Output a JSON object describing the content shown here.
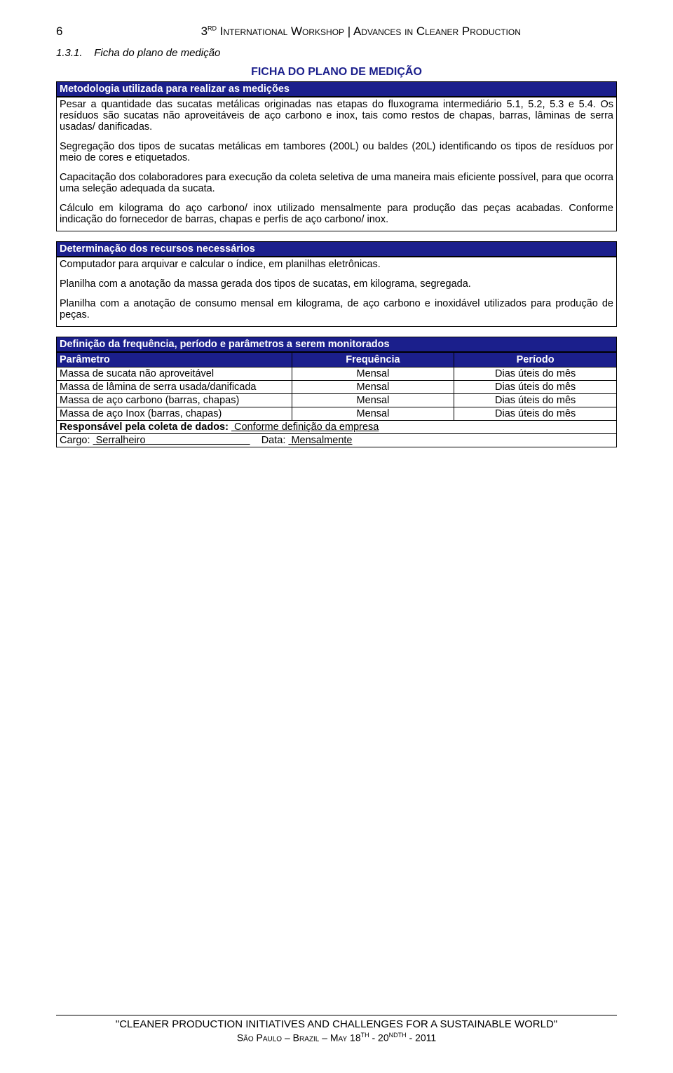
{
  "colors": {
    "dark_blue": "#1b1f8c",
    "white": "#ffffff",
    "black": "#000000"
  },
  "header": {
    "page_number": "6",
    "doc_title_prefix": "3",
    "doc_title_sup": "RD",
    "doc_title_rest": " International Workshop | Advances in Cleaner Production"
  },
  "section": {
    "number": "1.3.1.",
    "label": "Ficha do plano de medição"
  },
  "ficha_title": "FICHA DO PLANO DE MEDIÇÃO",
  "metodologia": {
    "header": "Metodologia utilizada para realizar as medições",
    "p1": "Pesar a quantidade das sucatas metálicas originadas nas etapas do fluxograma intermediário 5.1, 5.2, 5.3 e 5.4. Os resíduos são sucatas não aproveitáveis de aço carbono e inox, tais como restos de chapas, barras, lâminas de serra usadas/ danificadas.",
    "p2": "Segregação dos tipos de sucatas metálicas em tambores (200L) ou baldes (20L) identificando os tipos de resíduos por meio de cores e etiquetados.",
    "p3": "Capacitação dos colaboradores para execução da coleta seletiva de uma maneira mais eficiente possível, para que ocorra uma seleção adequada da sucata.",
    "p4": "Cálculo em kilograma do aço carbono/ inox utilizado mensalmente para produção das peças acabadas. Conforme indicação do fornecedor de barras, chapas e perfis de aço carbono/ inox."
  },
  "recursos": {
    "header": "Determinação dos recursos necessários",
    "p1": "Computador para arquivar e calcular o índice, em planilhas eletrônicas.",
    "p2": "Planilha com a anotação da massa gerada dos tipos de sucatas, em kilograma, segregada.",
    "p3": "Planilha com a anotação de consumo mensal em kilograma, de aço carbono e inoxidável utilizados para produção de peças."
  },
  "definicao": {
    "header": "Definição da frequência, período e parâmetros a serem monitorados",
    "columns": [
      "Parâmetro",
      "Frequência",
      "Período"
    ],
    "rows": [
      [
        "Massa de sucata não aproveitável",
        "Mensal",
        "Dias úteis do mês"
      ],
      [
        "Massa de lâmina de serra usada/danificada",
        "Mensal",
        "Dias úteis do mês"
      ],
      [
        "Massa de aço carbono (barras, chapas)",
        "Mensal",
        "Dias úteis do mês"
      ],
      [
        "Massa de aço Inox (barras, chapas)",
        "Mensal",
        "Dias úteis do mês"
      ]
    ],
    "responsavel_label": "Responsável pela coleta de dados:",
    "responsavel_value": "Conforme definição da empresa",
    "cargo_label": "Cargo:",
    "cargo_value": "Serralheiro",
    "data_label": "Data:",
    "data_value": "Mensalmente"
  },
  "footer": {
    "line1": "\"CLEANER PRODUCTION INITIATIVES AND CHALLENGES FOR A SUSTAINABLE WORLD\"",
    "line2_city": "São Paulo – Brazil – May 18",
    "line2_sup1": "TH",
    "line2_mid": " - 20",
    "line2_sup2": "NDTH",
    "line2_end": " -  2011"
  }
}
